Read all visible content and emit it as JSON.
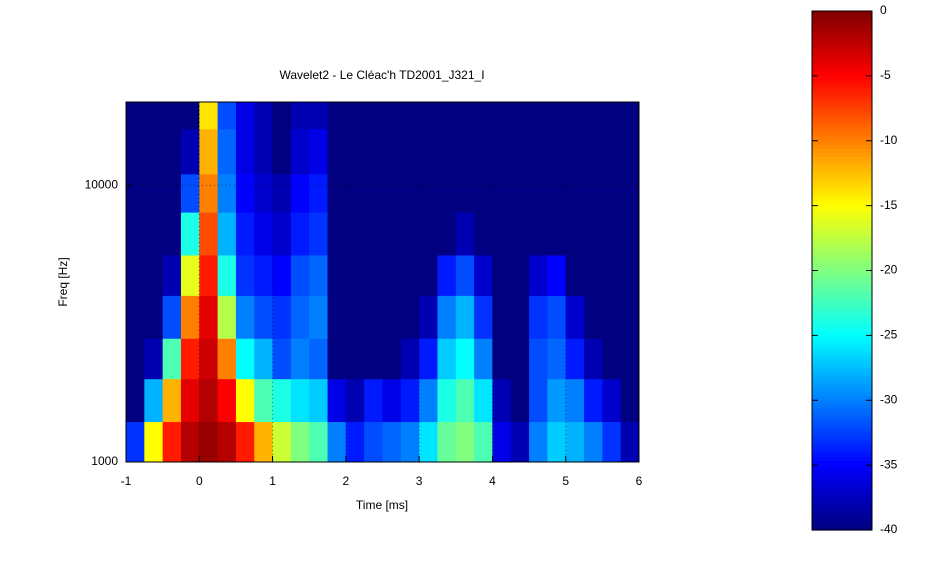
{
  "chart_data": {
    "type": "heatmap",
    "title": "Wavelet2 - Le Cléac'h TD2001_J321_I",
    "xlabel": "Time [ms]",
    "ylabel": "Freq [Hz]",
    "x": [
      -1,
      -0.75,
      -0.5,
      -0.25,
      0,
      0.25,
      0.5,
      0.75,
      1,
      1.25,
      1.5,
      1.75,
      2,
      2.25,
      2.5,
      2.75,
      3,
      3.25,
      3.5,
      3.75,
      4,
      4.25,
      4.5,
      4.75,
      5,
      5.25,
      5.5,
      5.75,
      6
    ],
    "y": [
      1000,
      1400,
      2000,
      2800,
      4000,
      5600,
      8000,
      11000,
      16000,
      20000
    ],
    "z": [
      [
        -33,
        -15,
        -6,
        -2,
        -1,
        -2,
        -6,
        -12,
        -17,
        -20,
        -22,
        -30,
        -34,
        -32,
        -31,
        -30,
        -26,
        -21,
        -20,
        -22,
        -36,
        -38,
        -30,
        -27,
        -28,
        -30,
        -33,
        -38
      ],
      [
        -40,
        -28,
        -12,
        -4,
        -2,
        -5,
        -15,
        -22,
        -24,
        -26,
        -27,
        -36,
        -38,
        -34,
        -36,
        -34,
        -30,
        -24,
        -22,
        -26,
        -38,
        -40,
        -32,
        -29,
        -30,
        -34,
        -37,
        -40
      ],
      [
        -40,
        -38,
        -22,
        -6,
        -3,
        -10,
        -25,
        -28,
        -32,
        -30,
        -31,
        -40,
        -40,
        -40,
        -40,
        -38,
        -34,
        -27,
        -25,
        -30,
        -40,
        -40,
        -32,
        -31,
        -34,
        -38,
        -40,
        -40
      ],
      [
        -40,
        -40,
        -32,
        -10,
        -4,
        -18,
        -30,
        -32,
        -33,
        -31,
        -30,
        -40,
        -40,
        -40,
        -40,
        -40,
        -38,
        -30,
        -28,
        -33,
        -40,
        -40,
        -33,
        -32,
        -37,
        -40,
        -40,
        -40
      ],
      [
        -40,
        -40,
        -38,
        -16,
        -6,
        -24,
        -33,
        -34,
        -35,
        -32,
        -31,
        -40,
        -40,
        -40,
        -40,
        -40,
        -40,
        -34,
        -32,
        -37,
        -40,
        -40,
        -37,
        -35,
        -40,
        -40,
        -40,
        -40
      ],
      [
        -40,
        -40,
        -40,
        -24,
        -8,
        -28,
        -34,
        -36,
        -37,
        -34,
        -33,
        -40,
        -40,
        -40,
        -40,
        -40,
        -40,
        -40,
        -38,
        -40,
        -40,
        -40,
        -40,
        -40,
        -40,
        -40,
        -40,
        -40
      ],
      [
        -40,
        -40,
        -40,
        -32,
        -10,
        -30,
        -35,
        -37,
        -38,
        -35,
        -34,
        -40,
        -40,
        -40,
        -40,
        -40,
        -40,
        -40,
        -40,
        -40,
        -40,
        -40,
        -40,
        -40,
        -40,
        -40,
        -40,
        -40
      ],
      [
        -40,
        -40,
        -40,
        -38,
        -12,
        -31,
        -36,
        -38,
        -40,
        -37,
        -36,
        -40,
        -40,
        -40,
        -40,
        -40,
        -40,
        -40,
        -40,
        -40,
        -40,
        -40,
        -40,
        -40,
        -40,
        -40,
        -40,
        -40
      ],
      [
        -40,
        -40,
        -40,
        -40,
        -14,
        -32,
        -36,
        -38,
        -40,
        -38,
        -38,
        -40,
        -40,
        -40,
        -40,
        -40,
        -40,
        -40,
        -40,
        -40,
        -40,
        -40,
        -40,
        -40,
        -40,
        -40,
        -40,
        -40
      ]
    ],
    "xlim": [
      -1,
      6
    ],
    "xticks": [
      -1,
      0,
      1,
      2,
      3,
      4,
      5,
      6
    ],
    "ylim": [
      1000,
      20000
    ],
    "yticks": [
      1000,
      10000
    ],
    "yscale": "log",
    "colormap": "jet",
    "clim": [
      -40,
      0
    ],
    "cticks": [
      0,
      -5,
      -10,
      -15,
      -20,
      -25,
      -30,
      -35,
      -40
    ],
    "grid": true
  }
}
